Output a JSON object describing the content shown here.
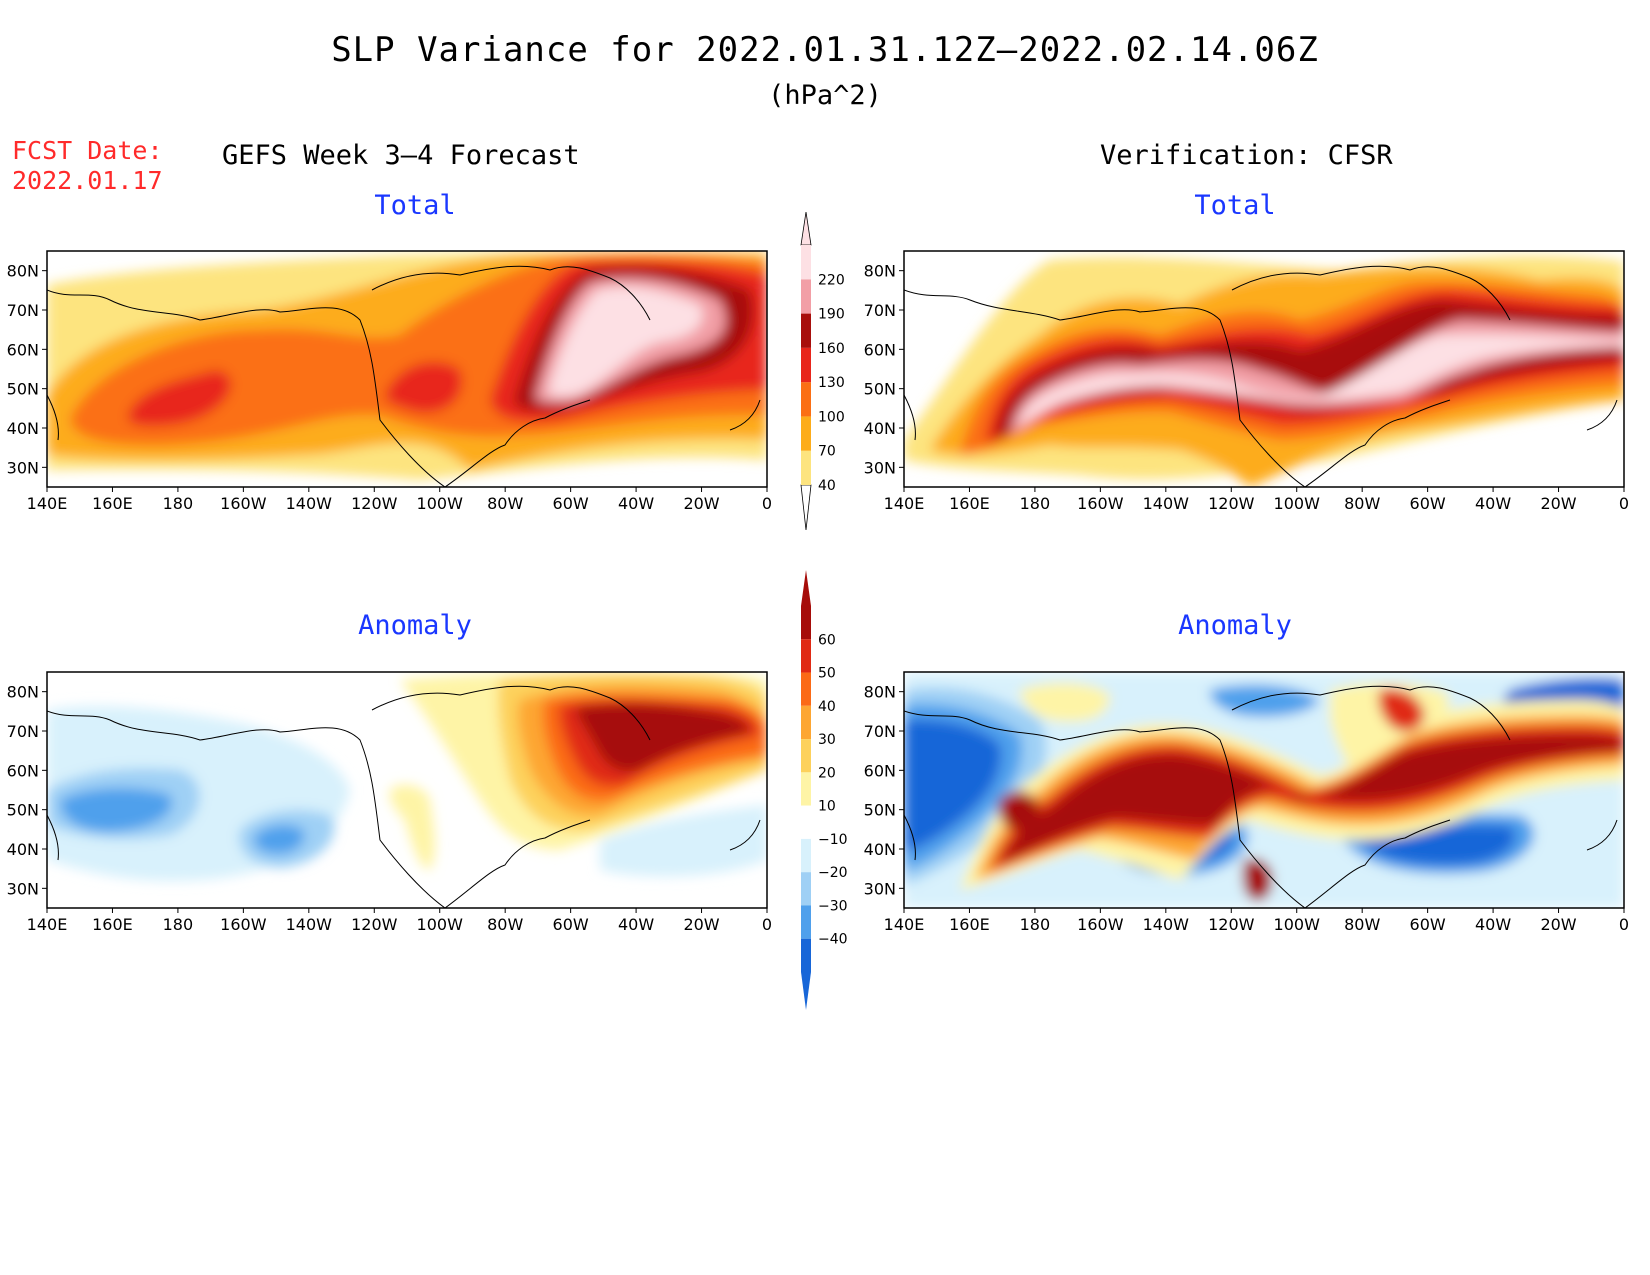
{
  "header": {
    "title": "SLP Variance for 2022.01.31.12Z–2022.02.14.06Z",
    "units": "(hPa^2)",
    "fcst_label": "FCST Date:",
    "fcst_date": "2022.01.17",
    "left_column": "GEFS Week 3–4 Forecast",
    "right_column": "Verification: CFSR"
  },
  "panels": {
    "top_left": "Total",
    "top_right": "Total",
    "bottom_left": "Anomaly",
    "bottom_right": "Anomaly"
  },
  "axes": {
    "lon_labels": [
      "140E",
      "160E",
      "180",
      "160W",
      "140W",
      "120W",
      "100W",
      "80W",
      "60W",
      "40W",
      "20W",
      "0"
    ],
    "lat_labels": [
      "30N",
      "40N",
      "50N",
      "60N",
      "70N",
      "80N"
    ],
    "lon_range_deg_east": [
      140,
      360
    ],
    "lat_range_deg_north": [
      25,
      85
    ]
  },
  "colorbars": {
    "total": {
      "levels": [
        "40",
        "70",
        "100",
        "130",
        "160",
        "190",
        "220"
      ],
      "colors": [
        "#fde47f",
        "#fdac1a",
        "#fb6f14",
        "#e8251b",
        "#a80f0c",
        "#f29fa6",
        "#fde0e4"
      ]
    },
    "anomaly": {
      "levels": [
        "60",
        "50",
        "40",
        "30",
        "20",
        "10",
        "−10",
        "−20",
        "−30",
        "−40"
      ],
      "colors": [
        "#a60c09",
        "#e02a14",
        "#fb6a16",
        "#fda632",
        "#fdd15c",
        "#fef4a6",
        "#ffffff",
        "#d8f1fc",
        "#9fd0f5",
        "#4fa0ec",
        "#1766d8"
      ]
    }
  }
}
